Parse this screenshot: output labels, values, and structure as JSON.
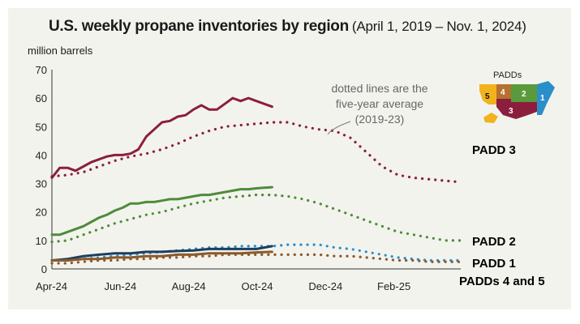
{
  "title": {
    "main": "U.S. weekly propane inventories by region",
    "sub": "(April 1, 2019 – Nov. 1, 2024)",
    "units": "million barrels"
  },
  "chart_data": {
    "type": "line",
    "title": "U.S. weekly propane inventories by region",
    "subtitle": "(April 1, 2019 – Nov. 1, 2024)",
    "ylabel": "million barrels",
    "xlabel": "",
    "ylim": [
      0,
      70
    ],
    "yticks": [
      "0",
      "10",
      "20",
      "30",
      "40",
      "50",
      "60",
      "70"
    ],
    "xlim": [
      0,
      52
    ],
    "xticks": [
      {
        "label": "Apr-24",
        "x": 0
      },
      {
        "label": "Jun-24",
        "x": 8.7
      },
      {
        "label": "Aug-24",
        "x": 17.4
      },
      {
        "label": "Oct-24",
        "x": 26.1
      },
      {
        "label": "Dec-24",
        "x": 34.8
      },
      {
        "label": "Feb-25",
        "x": 43.5
      }
    ],
    "colors": {
      "padd3": "#8b1e3f",
      "padd2": "#4e8c3a",
      "padd1": "#2a8fc9",
      "padd1_actual": "#1c3f5e",
      "padd45": "#8a5a2b"
    },
    "series": [
      {
        "name": "PADD 3",
        "style": "solid",
        "color": "#8b1e3f",
        "x": [
          0,
          1,
          2,
          3,
          4,
          5,
          6,
          7,
          8,
          9,
          10,
          11,
          12,
          13,
          14,
          15,
          16,
          17,
          18,
          19,
          20,
          21,
          22,
          23,
          24,
          25,
          26,
          27,
          28
        ],
        "y": [
          32,
          35.5,
          35.5,
          34.5,
          36,
          37.5,
          38.5,
          39.5,
          40,
          40,
          40.5,
          42,
          46.5,
          49,
          51.5,
          52,
          53.5,
          54,
          56,
          57.5,
          56,
          56,
          58,
          60,
          59,
          60,
          59,
          58,
          57
        ]
      },
      {
        "name": "PADD 3 five-year average",
        "style": "dotted",
        "color": "#8b1e3f",
        "x": [
          0,
          2,
          4,
          6,
          8,
          10,
          12,
          14,
          16,
          18,
          20,
          22,
          24,
          26,
          28,
          30,
          32,
          34,
          36,
          38,
          40,
          42,
          44,
          46,
          48,
          50,
          52
        ],
        "y": [
          32.5,
          33,
          34,
          36,
          38,
          39.5,
          40.5,
          42,
          44,
          46.5,
          48.5,
          50,
          50.5,
          51,
          51.5,
          51.5,
          50,
          49,
          48.5,
          46,
          41,
          36,
          33,
          32,
          31.5,
          31,
          30.5
        ]
      },
      {
        "name": "PADD 2",
        "style": "solid",
        "color": "#4e8c3a",
        "x": [
          0,
          1,
          2,
          3,
          4,
          5,
          6,
          7,
          8,
          9,
          10,
          11,
          12,
          13,
          14,
          15,
          16,
          17,
          18,
          19,
          20,
          21,
          22,
          23,
          24,
          25,
          26,
          27,
          28
        ],
        "y": [
          12,
          12,
          13,
          14,
          15,
          16.5,
          18,
          19,
          20.5,
          21.5,
          23,
          23,
          23.5,
          23.5,
          24,
          24.5,
          24.5,
          25,
          25.5,
          26,
          26,
          26.5,
          27,
          27.5,
          28,
          28,
          28.3,
          28.5,
          28.7
        ]
      },
      {
        "name": "PADD 2 five-year average",
        "style": "dotted",
        "color": "#4e8c3a",
        "x": [
          0,
          2,
          4,
          6,
          8,
          10,
          12,
          14,
          16,
          18,
          20,
          22,
          24,
          26,
          28,
          30,
          32,
          34,
          36,
          38,
          40,
          42,
          44,
          46,
          48,
          50,
          52
        ],
        "y": [
          9.5,
          10,
          12,
          14,
          16,
          17.5,
          19,
          20,
          21.5,
          23,
          24,
          25,
          25.5,
          26,
          26,
          25.5,
          24.5,
          23,
          21,
          19,
          17,
          15,
          13,
          12,
          11,
          10,
          10
        ]
      },
      {
        "name": "PADD 1",
        "style": "solid",
        "color": "#1c3f5e",
        "x": [
          0,
          2,
          4,
          6,
          8,
          10,
          12,
          14,
          16,
          18,
          20,
          22,
          24,
          26,
          28
        ],
        "y": [
          3,
          3.5,
          4.5,
          5,
          5.5,
          5.5,
          6,
          6,
          6.3,
          6.5,
          7,
          7,
          7,
          7,
          8
        ]
      },
      {
        "name": "PADD 1 five-year average",
        "style": "dotted",
        "color": "#2a8fc9",
        "x": [
          0,
          2,
          4,
          6,
          8,
          10,
          12,
          14,
          16,
          18,
          20,
          22,
          24,
          26,
          28,
          30,
          32,
          34,
          36,
          38,
          40,
          42,
          44,
          46,
          48,
          50,
          52
        ],
        "y": [
          3,
          3,
          3.5,
          4,
          4.5,
          5,
          5.5,
          6,
          6.5,
          7,
          7.5,
          7.5,
          8,
          8,
          8,
          8.5,
          8.5,
          8.5,
          7.5,
          7,
          6,
          5,
          4,
          3.5,
          3,
          3,
          3
        ]
      },
      {
        "name": "PADDs 4 and 5",
        "style": "solid",
        "color": "#8a5a2b",
        "x": [
          0,
          2,
          4,
          6,
          8,
          10,
          12,
          14,
          16,
          18,
          20,
          22,
          24,
          26,
          28
        ],
        "y": [
          3,
          3,
          3.5,
          3.5,
          4,
          4,
          4.5,
          4.5,
          5,
          5,
          5.5,
          5.5,
          5.5,
          5.8,
          6
        ]
      },
      {
        "name": "PADDs 4 and 5 five-year average",
        "style": "dotted",
        "color": "#8a5a2b",
        "x": [
          0,
          2,
          4,
          6,
          8,
          10,
          12,
          14,
          16,
          18,
          20,
          22,
          24,
          26,
          28,
          30,
          32,
          34,
          36,
          38,
          40,
          42,
          44,
          46,
          48,
          50,
          52
        ],
        "y": [
          2,
          2,
          2.5,
          3,
          3,
          3.5,
          3.5,
          4,
          4,
          4.5,
          4.5,
          5,
          5,
          5,
          5,
          5,
          5,
          5,
          4.5,
          4.5,
          4,
          3.5,
          3,
          3,
          2.5,
          2.5,
          2.5
        ]
      }
    ],
    "labels": [
      {
        "text": "PADD 3",
        "color": "#8b1e3f"
      },
      {
        "text": "PADD 2",
        "color": "#4e8c3a"
      },
      {
        "text": "PADD 1",
        "color": "#2a8fc9"
      },
      {
        "text": "PADDs 4 and  5",
        "color": "#8a5a2b"
      }
    ],
    "annotation": {
      "line1": "dotted lines are the",
      "line2": "five-year average",
      "line3": "(2019-23)"
    },
    "legend_map": {
      "title": "PADDs",
      "regions": [
        "5",
        "4",
        "2",
        "1",
        "3"
      ]
    }
  }
}
